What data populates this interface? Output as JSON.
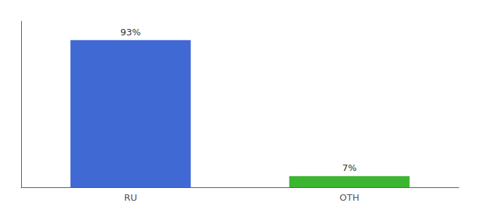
{
  "chart_data": {
    "type": "bar",
    "categories": [
      "RU",
      "OTH"
    ],
    "values": [
      93,
      7
    ],
    "value_labels": [
      "93%",
      "7%"
    ],
    "colors": [
      "#4169d4",
      "#3cb531"
    ],
    "ylim": [
      0,
      105
    ],
    "data_labels": true,
    "tick_labels": "x",
    "grid": false
  }
}
